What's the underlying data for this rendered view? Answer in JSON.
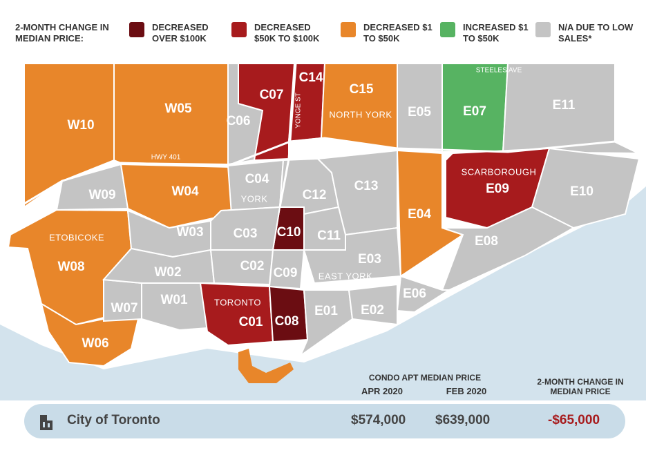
{
  "legend": {
    "title": "2-MONTH CHANGE IN MEDIAN PRICE:",
    "items": [
      {
        "label": "DECREASED OVER $100K",
        "color": "#6b0d12"
      },
      {
        "label": "DECREASED $50K TO $100K",
        "color": "#a71b1d"
      },
      {
        "label": "DECREASED $1 TO $50K",
        "color": "#e8862a"
      },
      {
        "label": "INCREASED $1 TO $50K",
        "color": "#57b362"
      },
      {
        "label": "N/A DUE TO LOW SALES*",
        "color": "#c4c4c4"
      }
    ]
  },
  "map": {
    "districts": [
      {
        "label": "W10",
        "category": 2
      },
      {
        "label": "W05",
        "category": 2
      },
      {
        "label": "W09",
        "category": 4
      },
      {
        "label": "W04",
        "category": 2
      },
      {
        "label": "W08",
        "category": 2
      },
      {
        "label": "W06",
        "category": 2
      },
      {
        "label": "W07",
        "category": 4
      },
      {
        "label": "W03",
        "category": 4
      },
      {
        "label": "W02",
        "category": 4
      },
      {
        "label": "W01",
        "category": 4
      },
      {
        "label": "C06",
        "category": 4
      },
      {
        "label": "C07",
        "category": 1
      },
      {
        "label": "C14",
        "category": 1
      },
      {
        "label": "C15",
        "category": 2
      },
      {
        "label": "E05",
        "category": 4
      },
      {
        "label": "E07",
        "category": 3
      },
      {
        "label": "E11",
        "category": 4
      },
      {
        "label": "C04",
        "category": 4
      },
      {
        "label": "C12",
        "category": 4
      },
      {
        "label": "C13",
        "category": 4
      },
      {
        "label": "C10",
        "category": 0
      },
      {
        "label": "C03",
        "category": 4
      },
      {
        "label": "C11",
        "category": 4
      },
      {
        "label": "C02",
        "category": 4
      },
      {
        "label": "C09",
        "category": 4
      },
      {
        "label": "E03",
        "category": 4
      },
      {
        "label": "E04",
        "category": 2
      },
      {
        "label": "E09",
        "category": 1
      },
      {
        "label": "E10",
        "category": 4
      },
      {
        "label": "E08",
        "category": 4
      },
      {
        "label": "E06",
        "category": 4
      },
      {
        "label": "C01",
        "category": 1
      },
      {
        "label": "C08",
        "category": 0
      },
      {
        "label": "E01",
        "category": 4
      },
      {
        "label": "E02",
        "category": 4
      }
    ],
    "areas": [
      "NORTH YORK",
      "SCARBOROUGH",
      "ETOBICOKE",
      "YORK",
      "EAST YORK",
      "TORONTO"
    ],
    "roads": [
      "HWY 401",
      "YONGE ST",
      "STEELES AVE"
    ]
  },
  "summary": {
    "header": "CONDO APT MEDIAN PRICE",
    "columns": [
      "APR 2020",
      "FEB 2020",
      "2-MONTH CHANGE IN MEDIAN PRICE"
    ],
    "row": {
      "name": "City of Toronto",
      "values": [
        "$574,000",
        "$639,000",
        "-$65,000"
      ]
    }
  }
}
